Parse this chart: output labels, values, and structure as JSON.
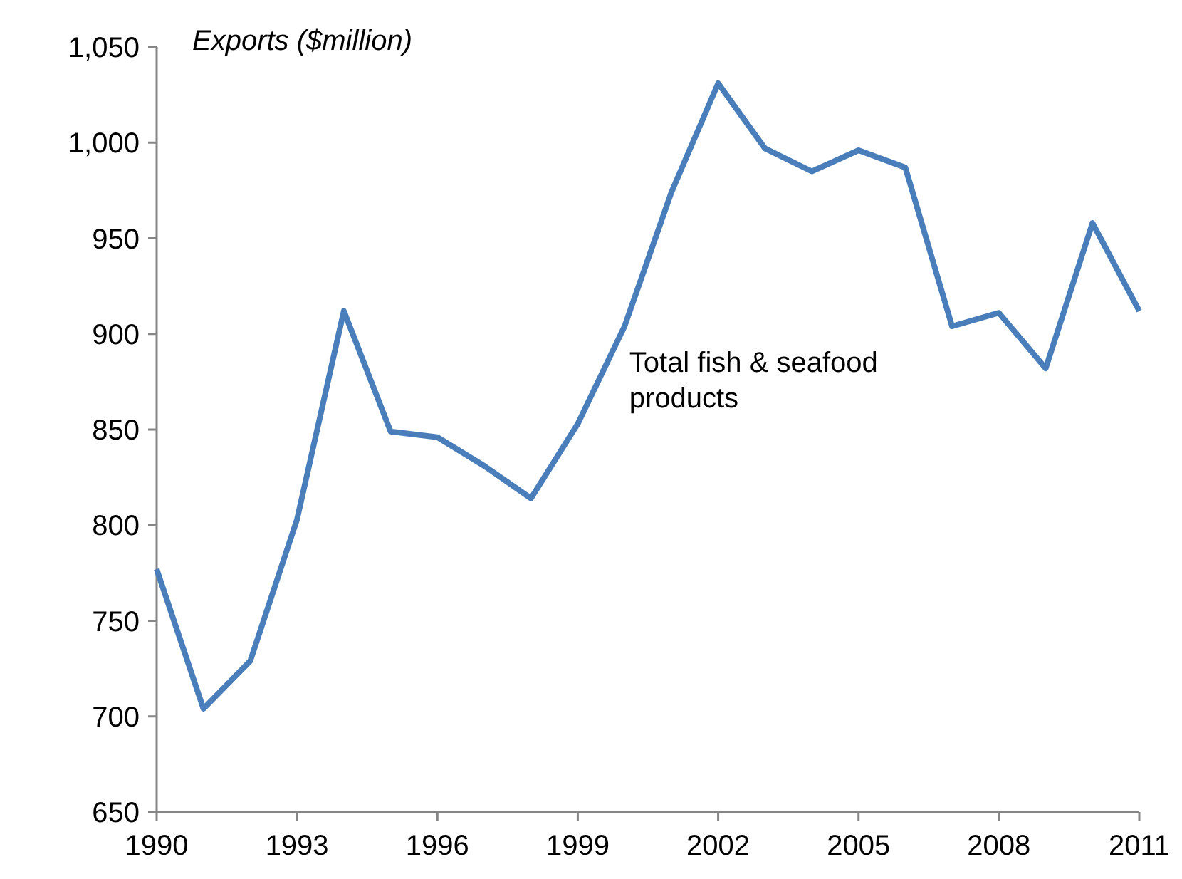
{
  "chart_data": {
    "type": "line",
    "ylabel": "Exports ($million)",
    "x": [
      1990,
      1991,
      1992,
      1993,
      1994,
      1995,
      1996,
      1997,
      1998,
      1999,
      2000,
      2001,
      2002,
      2003,
      2004,
      2005,
      2006,
      2007,
      2008,
      2009,
      2010,
      2011
    ],
    "series": [
      {
        "name": "Total fish & seafood products",
        "color": "#4a7ebb",
        "values": [
          777,
          704,
          729,
          803,
          912,
          849,
          846,
          831,
          814,
          853,
          904,
          974,
          1031,
          997,
          985,
          996,
          987,
          904,
          911,
          882,
          958,
          912
        ]
      }
    ],
    "xlim": [
      1990,
      2011
    ],
    "xticks": [
      1990,
      1993,
      1996,
      1999,
      2002,
      2005,
      2008,
      2011
    ],
    "ylim": [
      650,
      1050
    ],
    "yticks": [
      650,
      700,
      750,
      800,
      850,
      900,
      950,
      {
        "value": 1000,
        "label": "1,000"
      },
      {
        "value": 1050,
        "label": "1,050"
      }
    ],
    "grid": false,
    "marker": "none",
    "line_style": "solid"
  }
}
